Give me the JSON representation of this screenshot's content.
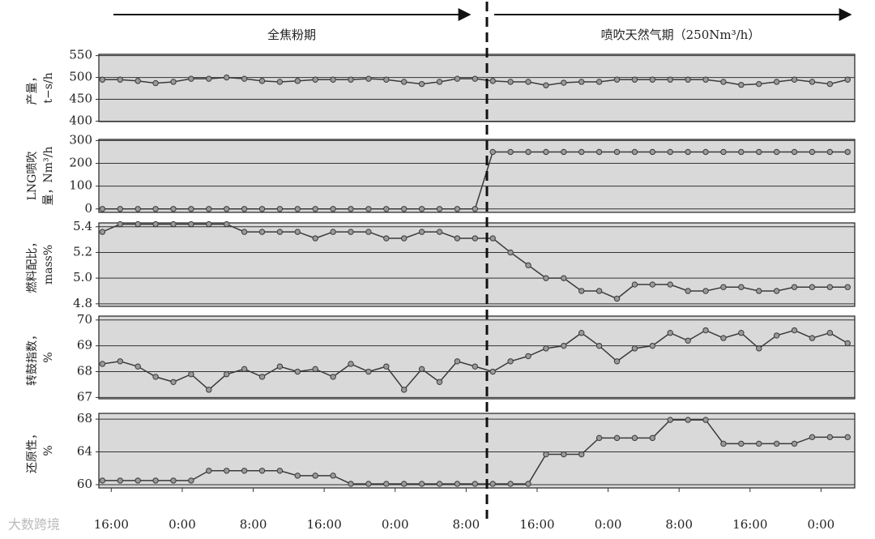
{
  "header": {
    "periods": [
      "全焦粉期",
      "喷吹天然气期（250Nm³/h）"
    ],
    "watermark": "大数跨境"
  },
  "chart_data": [
    {
      "type": "line",
      "y_label": [
        "产量，",
        "t−s/h"
      ],
      "color": "#3a3a3a",
      "fill": "#9a9a9a",
      "grid": true,
      "x": [
        -1,
        1,
        3,
        5,
        7,
        9,
        11,
        13,
        15,
        17,
        19,
        21,
        23,
        25,
        27,
        29,
        31,
        33,
        35,
        37,
        39,
        41,
        43,
        45,
        47,
        49,
        51,
        53,
        55,
        57,
        59,
        61,
        63,
        65,
        67,
        69,
        71,
        73,
        75,
        77,
        79,
        81,
        83
      ],
      "values": [
        495,
        495,
        492,
        487,
        490,
        497,
        497,
        500,
        497,
        492,
        490,
        492,
        495,
        495,
        495,
        497,
        495,
        490,
        485,
        490,
        497,
        497,
        492,
        490,
        490,
        482,
        488,
        490,
        490,
        495,
        495,
        495,
        495,
        495,
        495,
        490,
        483,
        485,
        490,
        495,
        490,
        485,
        495
      ],
      "xlim": [
        -1.4,
        83.8
      ],
      "ylim": [
        399,
        553
      ],
      "yticks": [
        400,
        450,
        500,
        550
      ]
    },
    {
      "type": "line",
      "y_label": [
        "LNG喷吹",
        "量，Nm³/h"
      ],
      "color": "#3a3a3a",
      "fill": "#9a9a9a",
      "grid": true,
      "x": [
        -1,
        1,
        3,
        5,
        7,
        9,
        11,
        13,
        15,
        17,
        19,
        21,
        23,
        25,
        27,
        29,
        31,
        33,
        35,
        37,
        39,
        41,
        43,
        45,
        47,
        49,
        51,
        53,
        55,
        57,
        59,
        61,
        63,
        65,
        67,
        69,
        71,
        73,
        75,
        77,
        79,
        81,
        83
      ],
      "values": [
        0,
        0,
        0,
        0,
        0,
        0,
        0,
        0,
        0,
        0,
        0,
        0,
        0,
        0,
        0,
        0,
        0,
        0,
        0,
        0,
        0,
        0,
        250,
        250,
        250,
        250,
        250,
        250,
        250,
        250,
        250,
        250,
        250,
        250,
        250,
        250,
        250,
        250,
        250,
        250,
        250,
        250,
        250
      ],
      "xlim": [
        -1.4,
        83.8
      ],
      "ylim": [
        -15,
        305
      ],
      "yticks": [
        0,
        100,
        200,
        300
      ]
    },
    {
      "type": "line",
      "y_label": [
        "燃料配比，",
        "mass%"
      ],
      "color": "#3a3a3a",
      "fill": "#9a9a9a",
      "grid": true,
      "x": [
        -1,
        1,
        3,
        5,
        7,
        9,
        11,
        13,
        15,
        17,
        19,
        21,
        23,
        25,
        27,
        29,
        31,
        33,
        35,
        37,
        39,
        41,
        43,
        45,
        47,
        49,
        51,
        53,
        55,
        57,
        59,
        61,
        63,
        65,
        67,
        69,
        71,
        73,
        75,
        77,
        79,
        81,
        83
      ],
      "values": [
        5.36,
        5.42,
        5.42,
        5.42,
        5.42,
        5.42,
        5.42,
        5.42,
        5.36,
        5.36,
        5.36,
        5.36,
        5.31,
        5.36,
        5.36,
        5.36,
        5.31,
        5.31,
        5.36,
        5.36,
        5.31,
        5.31,
        5.31,
        5.2,
        5.1,
        5.0,
        5.0,
        4.9,
        4.9,
        4.84,
        4.95,
        4.95,
        4.95,
        4.9,
        4.9,
        4.93,
        4.93,
        4.9,
        4.9,
        4.93,
        4.93,
        4.93,
        4.93
      ],
      "xlim": [
        -1.4,
        83.8
      ],
      "ylim": [
        4.78,
        5.43
      ],
      "yticks": [
        4.8,
        {
          "value": 5,
          "label": "5.0"
        },
        5.2,
        5.4
      ]
    },
    {
      "type": "line",
      "y_label": [
        "转鼓指数，",
        "%"
      ],
      "color": "#3a3a3a",
      "fill": "#9a9a9a",
      "grid": true,
      "x": [
        -1,
        1,
        3,
        5,
        7,
        9,
        11,
        13,
        15,
        17,
        19,
        21,
        23,
        25,
        27,
        29,
        31,
        33,
        35,
        37,
        39,
        41,
        43,
        45,
        47,
        49,
        51,
        53,
        55,
        57,
        59,
        61,
        63,
        65,
        67,
        69,
        71,
        73,
        75,
        77,
        79,
        81,
        83
      ],
      "values": [
        68.3,
        68.4,
        68.2,
        67.8,
        67.6,
        67.9,
        67.3,
        67.9,
        68.1,
        67.8,
        68.2,
        68.0,
        68.1,
        67.8,
        68.3,
        68.0,
        68.2,
        67.3,
        68.1,
        67.6,
        68.4,
        68.2,
        68.0,
        68.4,
        68.6,
        68.9,
        69.0,
        69.5,
        69.0,
        68.4,
        68.9,
        69.0,
        69.5,
        69.2,
        69.6,
        69.3,
        69.5,
        68.9,
        69.4,
        69.6,
        69.3,
        69.5,
        69.1
      ],
      "xlim": [
        -1.4,
        83.8
      ],
      "ylim": [
        66.95,
        70.15
      ],
      "yticks": [
        67,
        68,
        69,
        70
      ]
    },
    {
      "type": "line",
      "y_label": [
        "还原性，",
        "%"
      ],
      "color": "#3a3a3a",
      "fill": "#9a9a9a",
      "grid": true,
      "x": [
        -1,
        1,
        3,
        5,
        7,
        9,
        11,
        13,
        15,
        17,
        19,
        21,
        23,
        25,
        27,
        29,
        31,
        33,
        35,
        37,
        39,
        41,
        43,
        45,
        47,
        49,
        51,
        53,
        55,
        57,
        59,
        61,
        63,
        65,
        67,
        69,
        71,
        73,
        75,
        77,
        79,
        81,
        83
      ],
      "values": [
        60.5,
        60.5,
        60.5,
        60.5,
        60.5,
        60.5,
        61.7,
        61.7,
        61.7,
        61.7,
        61.7,
        61.1,
        61.1,
        61.1,
        60.1,
        60.1,
        60.1,
        60.1,
        60.1,
        60.1,
        60.1,
        60.1,
        60.1,
        60.1,
        60.1,
        63.7,
        63.7,
        63.7,
        65.7,
        65.7,
        65.7,
        65.7,
        67.9,
        67.9,
        67.9,
        65.0,
        65.0,
        65.0,
        65.0,
        65.0,
        65.8,
        65.8,
        65.8
      ],
      "xlim": [
        -1.4,
        83.8
      ],
      "ylim": [
        59.6,
        68.7
      ],
      "yticks": [
        60,
        64,
        68
      ],
      "xticks": [
        {
          "value": 0,
          "label": "16:00"
        },
        {
          "value": 8,
          "label": "0:00"
        },
        {
          "value": 16,
          "label": "8:00"
        },
        {
          "value": 24,
          "label": "16:00"
        },
        {
          "value": 32,
          "label": "0:00"
        },
        {
          "value": 40,
          "label": "8:00"
        },
        {
          "value": 48,
          "label": "16:00"
        },
        {
          "value": 56,
          "label": "0:00"
        },
        {
          "value": 64,
          "label": "8:00"
        },
        {
          "value": 72,
          "label": "16:00"
        },
        {
          "value": 80,
          "label": "0:00"
        }
      ]
    }
  ]
}
